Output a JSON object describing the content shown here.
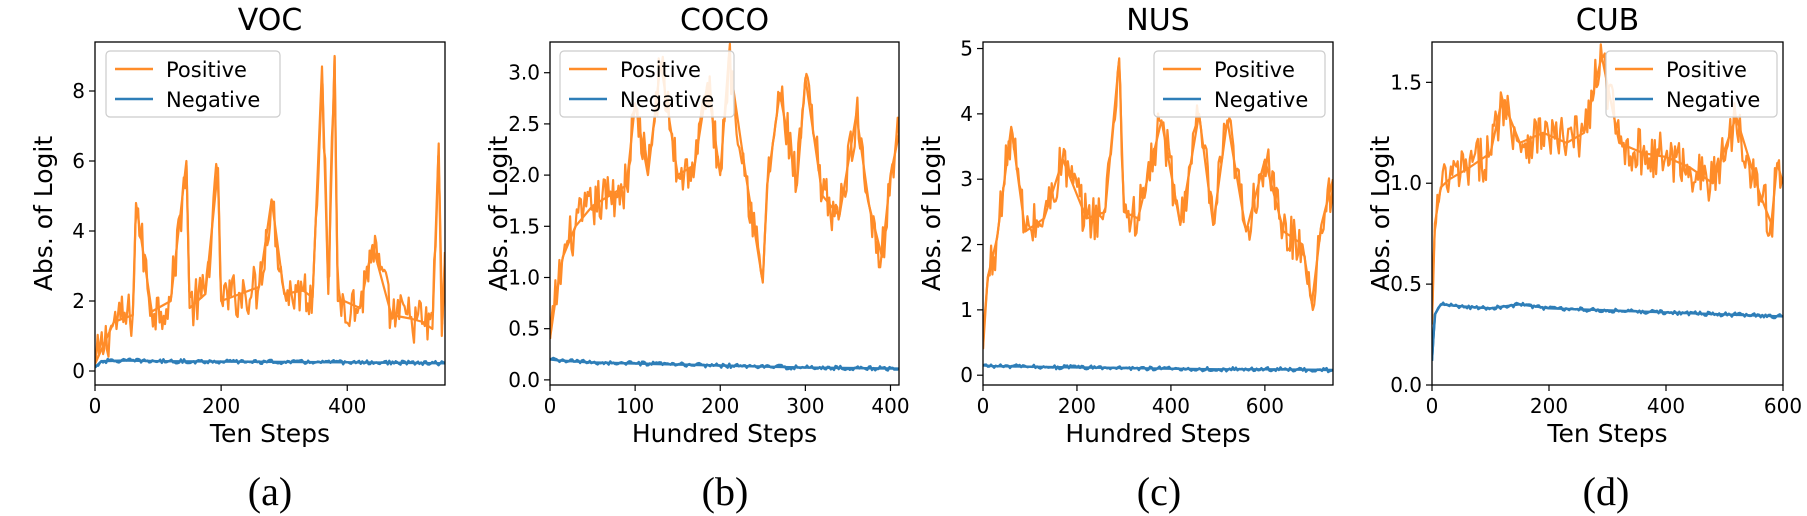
{
  "colors": {
    "positive": "#ff8c29",
    "negative": "#2e7eb8"
  },
  "chart_data": [
    {
      "type": "line",
      "title": "VOC",
      "caption": "(a)",
      "xlabel": "Ten Steps",
      "ylabel": "Abs. of Logit",
      "xlim": [
        0,
        555
      ],
      "ylim": [
        -0.4,
        9.4
      ],
      "xticks": [
        0,
        200,
        400
      ],
      "yticks": [
        0,
        2,
        4,
        6,
        8
      ],
      "ytick_labels": [
        "0",
        "2",
        "4",
        "6",
        "8"
      ],
      "legend_position": "upper-left",
      "series": [
        {
          "name": "Positive",
          "color": "#ff8c29",
          "x": [
            0,
            30,
            60,
            65,
            90,
            120,
            145,
            150,
            175,
            195,
            200,
            230,
            260,
            280,
            300,
            330,
            345,
            360,
            370,
            380,
            385,
            395,
            420,
            440,
            470,
            500,
            520,
            535,
            545,
            550,
            555
          ],
          "y": [
            0.2,
            1.4,
            1.6,
            4.8,
            1.7,
            2.0,
            6.0,
            1.8,
            2.2,
            5.8,
            2.0,
            2.2,
            2.4,
            4.9,
            2.2,
            2.3,
            2.1,
            8.7,
            2.2,
            9.0,
            2.0,
            2.0,
            1.8,
            3.6,
            1.6,
            1.5,
            1.4,
            1.2,
            6.5,
            1.0,
            3.4
          ]
        },
        {
          "name": "Negative",
          "color": "#2e7eb8",
          "x": [
            0,
            10,
            50,
            100,
            200,
            300,
            400,
            500,
            555
          ],
          "y": [
            0.1,
            0.28,
            0.3,
            0.28,
            0.27,
            0.26,
            0.25,
            0.23,
            0.22
          ]
        }
      ]
    },
    {
      "type": "line",
      "title": "COCO",
      "caption": "(b)",
      "xlabel": "Hundred Steps",
      "ylabel": "Abs. of Logit",
      "xlim": [
        0,
        410
      ],
      "ylim": [
        -0.05,
        3.3
      ],
      "xticks": [
        0,
        100,
        200,
        300,
        400
      ],
      "yticks": [
        0.0,
        0.5,
        1.0,
        1.5,
        2.0,
        2.5,
        3.0
      ],
      "ytick_labels": [
        "0.0",
        "0.5",
        "1.0",
        "1.5",
        "2.0",
        "2.5",
        "3.0"
      ],
      "legend_position": "upper-left",
      "series": [
        {
          "name": "Positive",
          "color": "#ff8c29",
          "x": [
            0,
            5,
            15,
            30,
            50,
            70,
            90,
            100,
            115,
            130,
            150,
            170,
            185,
            200,
            210,
            230,
            250,
            255,
            270,
            290,
            300,
            320,
            340,
            360,
            375,
            390,
            400,
            410
          ],
          "y": [
            0.4,
            0.7,
            1.2,
            1.5,
            1.7,
            1.8,
            1.9,
            2.7,
            2.0,
            3.1,
            2.0,
            2.1,
            2.9,
            2.0,
            3.15,
            2.0,
            0.95,
            1.9,
            2.8,
            1.9,
            2.95,
            1.8,
            1.6,
            2.6,
            1.7,
            1.2,
            2.0,
            2.4
          ]
        },
        {
          "name": "Negative",
          "color": "#2e7eb8",
          "x": [
            0,
            10,
            50,
            100,
            200,
            300,
            410
          ],
          "y": [
            0.2,
            0.19,
            0.17,
            0.16,
            0.14,
            0.12,
            0.11
          ]
        }
      ]
    },
    {
      "type": "line",
      "title": "NUS",
      "caption": "(c)",
      "xlabel": "Hundred Steps",
      "ylabel": "Abs. of Logit",
      "xlim": [
        0,
        745
      ],
      "ylim": [
        -0.15,
        5.1
      ],
      "xticks": [
        0,
        200,
        400,
        600
      ],
      "yticks": [
        0,
        1,
        2,
        3,
        4,
        5
      ],
      "ytick_labels": [
        "0",
        "1",
        "2",
        "3",
        "4",
        "5"
      ],
      "legend_position": "upper-right",
      "series": [
        {
          "name": "Positive",
          "color": "#ff8c29",
          "x": [
            0,
            10,
            30,
            60,
            90,
            130,
            170,
            220,
            260,
            290,
            300,
            330,
            380,
            420,
            460,
            490,
            520,
            560,
            600,
            640,
            680,
            700,
            720,
            745
          ],
          "y": [
            0.4,
            1.5,
            2.1,
            3.8,
            2.2,
            2.4,
            3.3,
            2.4,
            2.5,
            4.85,
            2.5,
            2.4,
            3.9,
            2.3,
            4.0,
            2.3,
            3.9,
            2.2,
            3.3,
            2.2,
            2.0,
            1.1,
            2.3,
            3.0
          ]
        },
        {
          "name": "Negative",
          "color": "#2e7eb8",
          "x": [
            0,
            20,
            100,
            200,
            300,
            400,
            500,
            600,
            745
          ],
          "y": [
            0.15,
            0.14,
            0.13,
            0.12,
            0.11,
            0.1,
            0.09,
            0.09,
            0.08
          ]
        }
      ]
    },
    {
      "type": "line",
      "title": "CUB",
      "caption": "(d)",
      "xlabel": "Ten Steps",
      "ylabel": "Abs. of Logit",
      "xlim": [
        0,
        600
      ],
      "ylim": [
        0.0,
        1.7
      ],
      "xticks": [
        0,
        200,
        400,
        600
      ],
      "yticks": [
        0.0,
        0.5,
        1.0,
        1.5
      ],
      "ytick_labels": [
        "0.0",
        "0.5",
        "1.0",
        "1.5"
      ],
      "legend_position": "upper-right",
      "series": [
        {
          "name": "Positive",
          "color": "#ff8c29",
          "x": [
            0,
            5,
            15,
            30,
            60,
            100,
            120,
            150,
            190,
            230,
            260,
            290,
            320,
            360,
            400,
            440,
            480,
            520,
            560,
            580,
            590,
            600
          ],
          "y": [
            0.3,
            0.8,
            0.98,
            1.02,
            1.07,
            1.15,
            1.42,
            1.2,
            1.25,
            1.2,
            1.25,
            1.63,
            1.2,
            1.15,
            1.13,
            1.08,
            1.0,
            1.33,
            0.95,
            0.8,
            1.1,
            1.0
          ]
        },
        {
          "name": "Negative",
          "color": "#2e7eb8",
          "x": [
            0,
            5,
            15,
            50,
            100,
            150,
            200,
            300,
            400,
            500,
            600
          ],
          "y": [
            0.12,
            0.35,
            0.4,
            0.39,
            0.38,
            0.4,
            0.38,
            0.37,
            0.36,
            0.35,
            0.34
          ]
        }
      ]
    }
  ]
}
